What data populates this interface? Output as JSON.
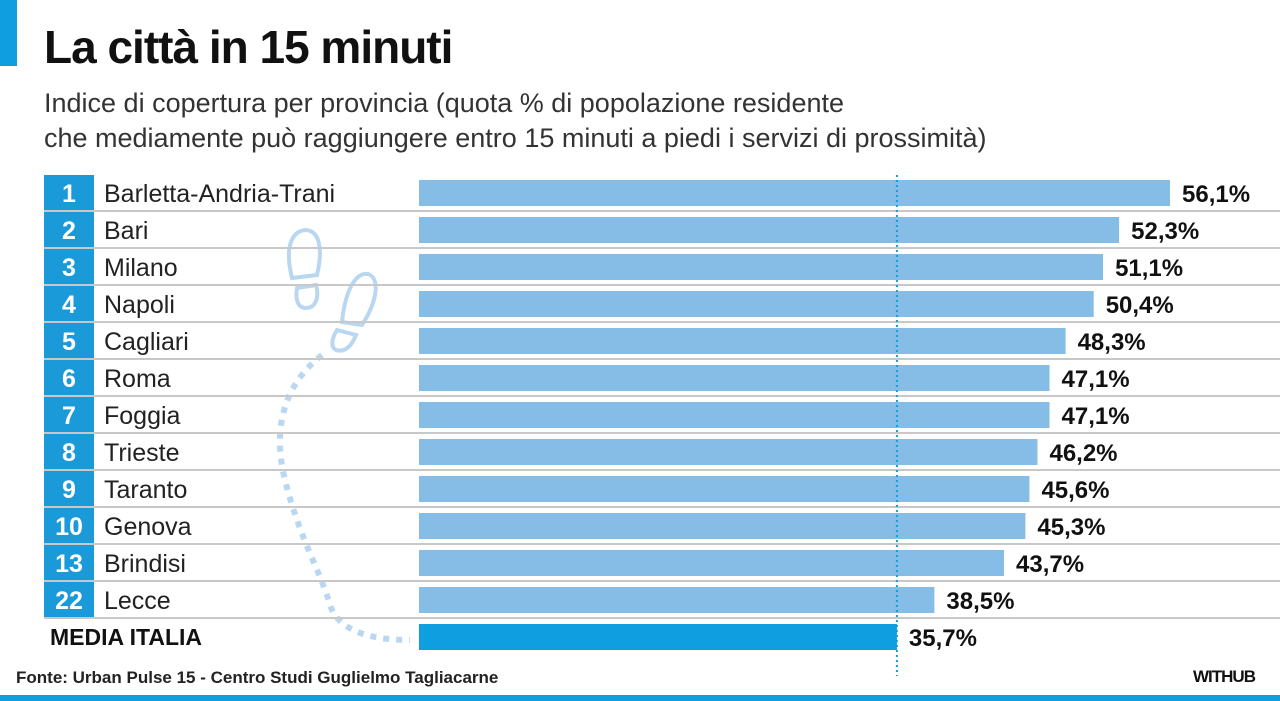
{
  "title": "La città in 15 minuti",
  "subtitle_line1": "Indice di copertura per provincia (quota % di popolazione residente",
  "subtitle_line2": "che mediamente può raggiungere entro 15 minuti a piedi i servizi di prossimità)",
  "source": "Fonte: Urban Pulse 15 - Centro Studi Guglielmo Tagliacarne",
  "logo": "WITHUB",
  "colors": {
    "accent": "#0f9ee0",
    "bar": "#85bde6",
    "average_bar": "#0f9ee0",
    "rank_box": "#1a9ad8",
    "footprints": "#b9d7f0"
  },
  "chart_data": {
    "type": "bar",
    "orientation": "horizontal",
    "title": "La città in 15 minuti",
    "xlim": [
      0,
      56.1
    ],
    "ranks": [
      "1",
      "2",
      "3",
      "4",
      "5",
      "6",
      "7",
      "8",
      "9",
      "10",
      "13",
      "22"
    ],
    "categories": [
      "Barletta-Andria-Trani",
      "Bari",
      "Milano",
      "Napoli",
      "Cagliari",
      "Roma",
      "Foggia",
      "Trieste",
      "Taranto",
      "Genova",
      "Brindisi",
      "Lecce"
    ],
    "values": [
      56.1,
      52.3,
      51.1,
      50.4,
      48.3,
      47.1,
      47.1,
      46.2,
      45.6,
      45.3,
      43.7,
      38.5
    ],
    "labels": [
      "56,1%",
      "52,3%",
      "51,1%",
      "50,4%",
      "48,3%",
      "47,1%",
      "47,1%",
      "46,2%",
      "45,6%",
      "45,3%",
      "43,7%",
      "38,5%"
    ],
    "average": {
      "label": "MEDIA ITALIA",
      "value": 35.7,
      "value_label": "35,7%"
    }
  }
}
